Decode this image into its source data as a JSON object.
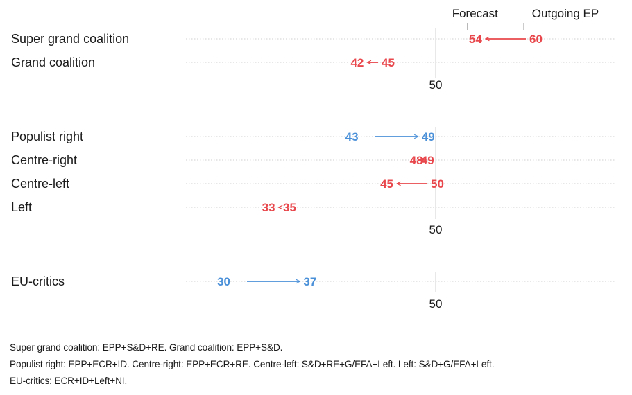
{
  "chart_data": [
    {
      "type": "arrow",
      "header_labels": [
        "Forecast",
        "Outgoing EP"
      ],
      "reference_tick_label": "50",
      "rows": [
        {
          "label": "Super grand coalition",
          "outgoing": 60,
          "forecast": 54,
          "direction": "decrease",
          "color": "#e8474c"
        },
        {
          "label": "Grand coalition",
          "outgoing": 45,
          "forecast": 42,
          "direction": "decrease",
          "color": "#e8474c"
        }
      ]
    },
    {
      "type": "arrow",
      "reference_tick_label": "50",
      "rows": [
        {
          "label": "Populist right",
          "outgoing": 43,
          "forecast": 49,
          "direction": "increase",
          "color": "#4a90d9"
        },
        {
          "label": "Centre-right",
          "outgoing": 49,
          "forecast": 48,
          "direction": "decrease",
          "color": "#e8474c"
        },
        {
          "label": "Centre-left",
          "outgoing": 50,
          "forecast": 45,
          "direction": "decrease",
          "color": "#e8474c"
        },
        {
          "label": "Left",
          "outgoing": 35,
          "forecast": 33,
          "direction": "decrease",
          "color": "#e8474c"
        }
      ]
    },
    {
      "type": "arrow",
      "reference_tick_label": "50",
      "rows": [
        {
          "label": "EU-critics",
          "outgoing": 30,
          "forecast": 37,
          "direction": "increase",
          "color": "#4a90d9"
        }
      ]
    }
  ],
  "notes": [
    "Super grand coalition: EPP+S&D+RE. Grand coalition: EPP+S&D.",
    "Populist right: EPP+ECR+ID. Centre-right: EPP+ECR+RE. Centre-left: S&D+RE+G/EFA+Left. Left: S&D+G/EFA+Left.",
    "EU-critics: ECR+ID+Left+NI."
  ],
  "colors": {
    "decrease": "#e8474c",
    "increase": "#4a90d9",
    "gridline": "#cfcfcf",
    "reference": "#d0d0d0",
    "text": "#1a1a1a"
  }
}
